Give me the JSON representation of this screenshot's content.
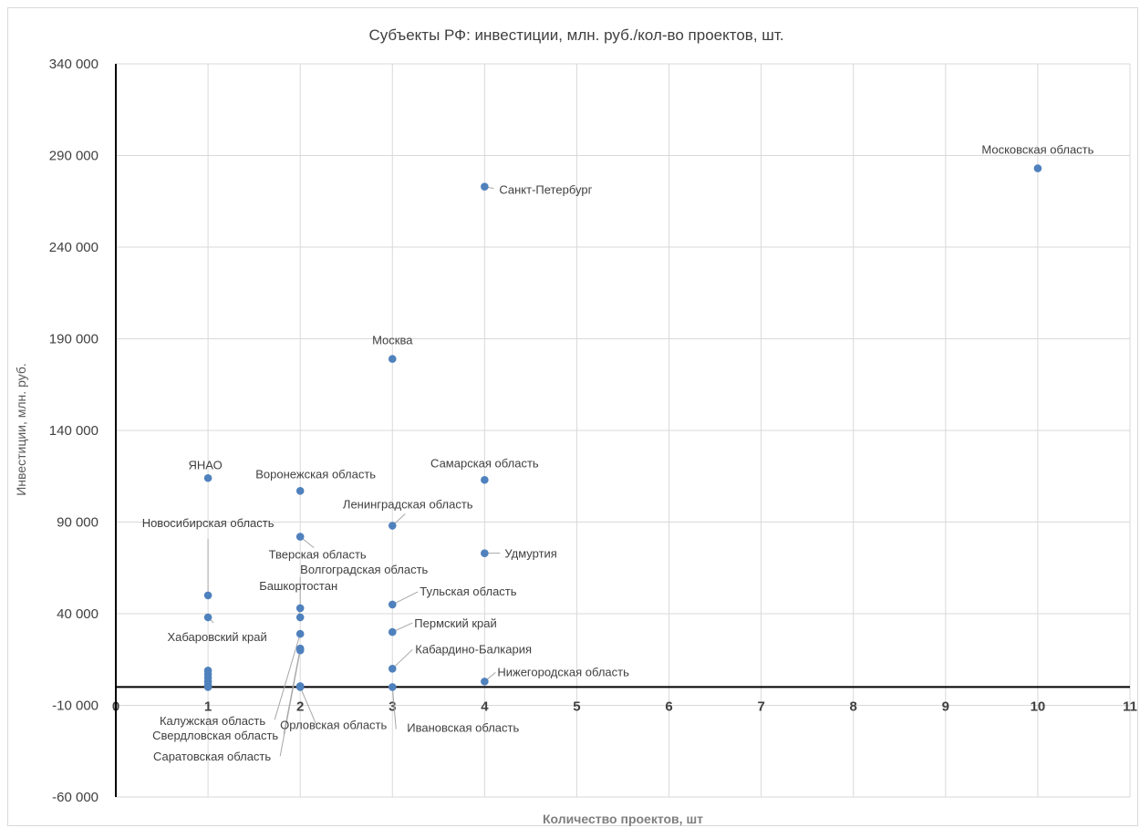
{
  "chart_data": {
    "type": "scatter",
    "title": "Субъекты РФ: инвестиции, млн. руб./кол-во проектов, шт.",
    "xlabel": "Количество проектов, шт",
    "ylabel": "Инвестиции, млн. руб.",
    "xlim": [
      0,
      11
    ],
    "ylim": [
      -60000,
      340000
    ],
    "x_ticks": [
      0,
      1,
      2,
      3,
      4,
      5,
      6,
      7,
      8,
      9,
      10,
      11
    ],
    "y_ticks": [
      -60000,
      -10000,
      40000,
      90000,
      140000,
      190000,
      240000,
      290000,
      340000
    ],
    "y_tick_labels": [
      "-60 000",
      "-10 000",
      "40 000",
      "90 000",
      "140 000",
      "190 000",
      "240 000",
      "290 000",
      "340 000"
    ],
    "x_tick_labels": [
      "0",
      "1",
      "2",
      "3",
      "4",
      "5",
      "6",
      "7",
      "8",
      "9",
      "10",
      "11"
    ],
    "grid": true,
    "legend": "none",
    "marker_color": "#4f81bd",
    "points": [
      {
        "label": "Московская область",
        "x": 10,
        "y": 283000
      },
      {
        "label": "Санкт-Петербург",
        "x": 4,
        "y": 273000
      },
      {
        "label": "Москва",
        "x": 3,
        "y": 179000
      },
      {
        "label": "ЯНАО",
        "x": 1,
        "y": 114000
      },
      {
        "label": "Самарская область",
        "x": 4,
        "y": 113000
      },
      {
        "label": "Воронежская область",
        "x": 2,
        "y": 107000
      },
      {
        "label": "Ленинградская область",
        "x": 3,
        "y": 88000
      },
      {
        "label": "Тверская область",
        "x": 2,
        "y": 82000
      },
      {
        "label": "Удмуртия",
        "x": 4,
        "y": 73000
      },
      {
        "label": "Новосибирская область",
        "x": 1,
        "y": 50000
      },
      {
        "label": "Тульская область",
        "x": 3,
        "y": 45000
      },
      {
        "label": "Волгоградская область",
        "x": 2,
        "y": 43000
      },
      {
        "label": "Башкортостан",
        "x": 2,
        "y": 38000
      },
      {
        "label": "Хабаровский край",
        "x": 1,
        "y": 38000
      },
      {
        "label": "Пермский край",
        "x": 3,
        "y": 30000
      },
      {
        "label": "Калужская область",
        "x": 2,
        "y": 29000
      },
      {
        "label": "Свердловская область",
        "x": 2,
        "y": 21000
      },
      {
        "label": "Саратовская область",
        "x": 2,
        "y": 20000
      },
      {
        "label": "Кабардино-Балкария",
        "x": 3,
        "y": 10000
      },
      {
        "label": "Нижегородская область",
        "x": 4,
        "y": 3000
      },
      {
        "label": "Орловская область",
        "x": 2,
        "y": 0
      },
      {
        "label": "Ивановская область",
        "x": 3,
        "y": 0
      },
      {
        "label": "",
        "x": 1,
        "y": 9000
      },
      {
        "label": "",
        "x": 1,
        "y": 7000
      },
      {
        "label": "",
        "x": 1,
        "y": 5000
      },
      {
        "label": "",
        "x": 1,
        "y": 3000
      },
      {
        "label": "",
        "x": 1,
        "y": 1000
      },
      {
        "label": "",
        "x": 1,
        "y": 0
      },
      {
        "label": "",
        "x": 2,
        "y": 500
      }
    ]
  }
}
